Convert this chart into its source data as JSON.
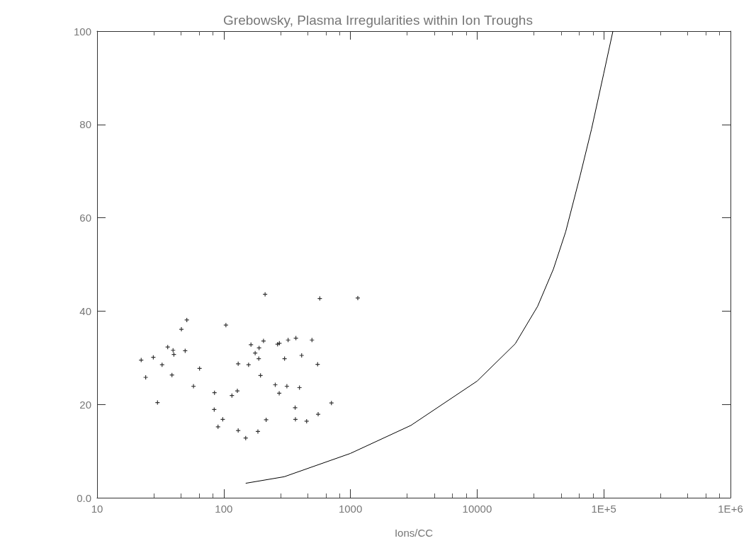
{
  "chart_data": {
    "type": "scatter",
    "title": "Grebowsky, Plasma Irregularities within Ion Troughs",
    "xlabel": "Ions/CC",
    "log": "x",
    "grid": false,
    "marker": "cross",
    "xlim": [
      10,
      1000000
    ],
    "xticks": [
      10,
      100,
      1000,
      10000,
      {
        "value": 100000,
        "label": "1E+5"
      },
      {
        "value": 1000000,
        "label": "1E+6"
      }
    ],
    "ylim": [
      0,
      100
    ],
    "yticks": [
      {
        "value": 0,
        "label": "0.0"
      },
      20,
      40,
      60,
      80,
      100
    ],
    "series": [
      {
        "color": "#000000",
        "x": [
          22.3,
          24.2,
          27.8,
          30.0,
          32.6,
          36.1,
          39.0,
          39.8,
          40.4,
          46.3,
          49.6,
          51.1,
          57.7,
          64.4,
          84.1,
          84.5,
          90.1,
          98.2,
          104,
          116,
          128,
          130,
          130,
          149,
          157,
          164,
          177,
          186,
          189,
          190,
          195,
          206,
          212,
          216,
          255,
          266,
          274,
          275,
          302,
          315,
          322,
          366,
          368,
          371,
          396,
          412,
          451,
          497,
          551,
          556,
          573,
          708,
          1143
        ],
        "values": [
          29.5,
          25.8,
          30.1,
          20.4,
          28.5,
          32.3,
          26.3,
          31.6,
          30.7,
          36.1,
          31.5,
          38.1,
          23.9,
          27.7,
          18.9,
          22.5,
          15.2,
          16.8,
          37.0,
          21.9,
          22.9,
          28.7,
          14.4,
          12.8,
          28.5,
          32.8,
          31.0,
          14.2,
          29.8,
          32.1,
          26.2,
          33.6,
          43.6,
          16.7,
          24.2,
          32.9,
          22.4,
          33.1,
          29.8,
          23.9,
          33.8,
          19.3,
          16.8,
          34.2,
          23.6,
          30.5,
          16.4,
          33.8,
          28.6,
          17.9,
          42.7,
          20.3,
          42.8
        ]
      },
      {
        "type": "line",
        "marker": "none",
        "color": "#000000",
        "x": [
          149,
          300,
          1000,
          3000,
          10000,
          20000,
          30000,
          40000,
          50000,
          65000,
          80000,
          100000,
          118000
        ],
        "values": [
          3.1,
          4.5,
          9.5,
          15.5,
          25,
          33,
          41,
          49,
          57,
          69,
          79,
          91,
          100
        ]
      }
    ]
  }
}
